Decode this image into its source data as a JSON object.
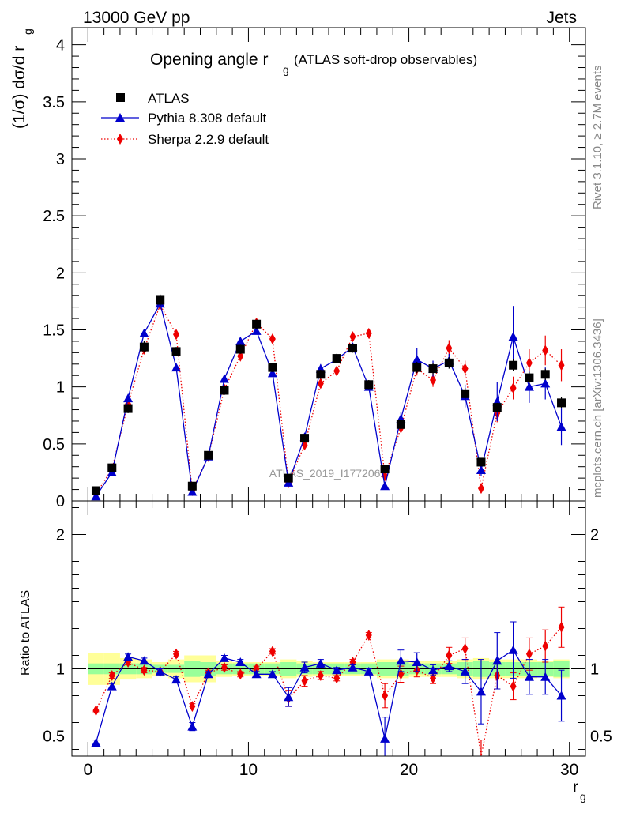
{
  "header": {
    "left_label": "13000 GeV pp",
    "right_label": "Jets"
  },
  "side_labels": {
    "rivet": "Rivet 3.1.10, ≥ 2.7M events",
    "mcplots": "mcplots.cern.ch [arXiv:1306.3436]"
  },
  "watermark": "ATLAS_2019_I1772062",
  "colors": {
    "atlas": "#000000",
    "pythia": "#0000cc",
    "sherpa": "#ee0000",
    "band_green": "#99ff99",
    "band_yellow": "#ffff99",
    "reference_line": "#007700"
  },
  "chart_data": [
    {
      "type": "scatter",
      "panel": "main",
      "title_main": "Opening angle r",
      "title_sub": "g",
      "title_suffix": "(ATLAS soft-drop observables)",
      "ylabel": "(1/σ) dσ/d r",
      "ylabel_sub": "g",
      "xlim": [
        -1,
        31
      ],
      "ylim": [
        0,
        4.15
      ],
      "yticks": [
        0,
        0.5,
        1,
        1.5,
        2,
        2.5,
        3,
        3.5,
        4
      ],
      "ytick_labels": [
        "0",
        "0.5",
        "1",
        "1.5",
        "2",
        "2.5",
        "3",
        "3.5",
        "4"
      ],
      "legend_position": "top-left",
      "x": [
        0.5,
        1.5,
        2.5,
        3.5,
        4.5,
        5.5,
        6.5,
        7.5,
        8.5,
        9.5,
        10.5,
        11.5,
        12.5,
        13.5,
        14.5,
        15.5,
        16.5,
        17.5,
        18.5,
        19.5,
        20.5,
        21.5,
        22.5,
        23.5,
        24.5,
        25.5,
        26.5,
        27.5,
        28.5,
        29.5
      ],
      "series": [
        {
          "name": "ATLAS",
          "marker": "square",
          "values": [
            0.09,
            0.29,
            0.81,
            1.35,
            1.76,
            1.31,
            0.13,
            0.4,
            0.97,
            1.33,
            1.55,
            1.17,
            0.2,
            0.55,
            1.11,
            1.25,
            1.34,
            1.02,
            0.28,
            0.67,
            1.17,
            1.16,
            1.21,
            0.94,
            0.34,
            0.82,
            1.19,
            1.08,
            1.11,
            0.86
          ],
          "errors": [
            0.01,
            0.02,
            0.04,
            0.05,
            0.05,
            0.04,
            0.02,
            0.03,
            0.04,
            0.04,
            0.04,
            0.04,
            0.02,
            0.03,
            0.04,
            0.04,
            0.04,
            0.04,
            0.03,
            0.04,
            0.05,
            0.05,
            0.05,
            0.05,
            0.03,
            0.04,
            0.05,
            0.05,
            0.05,
            0.05
          ]
        },
        {
          "name": "Pythia 8.308 default",
          "marker": "triangle",
          "line": "solid",
          "values": [
            0.04,
            0.25,
            0.9,
            1.47,
            1.73,
            1.17,
            0.08,
            0.39,
            1.07,
            1.4,
            1.49,
            1.12,
            0.16,
            0.56,
            1.16,
            1.24,
            1.35,
            1.0,
            0.13,
            0.72,
            1.24,
            1.16,
            1.23,
            0.92,
            0.27,
            0.87,
            1.44,
            1.0,
            1.03,
            0.65
          ],
          "errors": [
            0.01,
            0.01,
            0.02,
            0.02,
            0.02,
            0.02,
            0.01,
            0.02,
            0.02,
            0.02,
            0.02,
            0.02,
            0.01,
            0.02,
            0.04,
            0.03,
            0.03,
            0.03,
            0.02,
            0.06,
            0.1,
            0.07,
            0.06,
            0.1,
            0.05,
            0.17,
            0.27,
            0.14,
            0.14,
            0.16
          ]
        },
        {
          "name": "Sherpa 2.2.9 default",
          "marker": "diamond",
          "line": "dotted",
          "values": [
            0.06,
            0.28,
            0.85,
            1.33,
            1.72,
            1.46,
            0.09,
            0.39,
            0.98,
            1.27,
            1.56,
            1.42,
            0.16,
            0.49,
            1.03,
            1.14,
            1.44,
            1.47,
            0.22,
            0.64,
            1.16,
            1.06,
            1.34,
            1.16,
            0.11,
            0.77,
            0.99,
            1.21,
            1.32,
            1.19
          ],
          "errors": [
            0.01,
            0.01,
            0.02,
            0.02,
            0.02,
            0.02,
            0.01,
            0.02,
            0.02,
            0.02,
            0.02,
            0.02,
            0.01,
            0.02,
            0.03,
            0.03,
            0.03,
            0.03,
            0.02,
            0.04,
            0.06,
            0.06,
            0.07,
            0.07,
            0.02,
            0.08,
            0.1,
            0.12,
            0.13,
            0.14
          ]
        }
      ]
    },
    {
      "type": "scatter",
      "panel": "ratio",
      "ylabel": "Ratio to ATLAS",
      "xlabel": "r",
      "xlabel_sub": "g",
      "xlim": [
        -1,
        31
      ],
      "ylim": [
        0.35,
        2.25
      ],
      "xticks": [
        0,
        10,
        20,
        30
      ],
      "xtick_labels": [
        "0",
        "10",
        "20",
        "30"
      ],
      "yticks": [
        0.5,
        1,
        2
      ],
      "ytick_labels": [
        "0.5",
        "1",
        "2"
      ],
      "x": [
        0.5,
        1.5,
        2.5,
        3.5,
        4.5,
        5.5,
        6.5,
        7.5,
        8.5,
        9.5,
        10.5,
        11.5,
        12.5,
        13.5,
        14.5,
        15.5,
        16.5,
        17.5,
        18.5,
        19.5,
        20.5,
        21.5,
        22.5,
        23.5,
        24.5,
        25.5,
        26.5,
        27.5,
        28.5,
        29.5
      ],
      "band_stat": [
        0.04,
        0.04,
        0.04,
        0.04,
        0.03,
        0.03,
        0.06,
        0.05,
        0.04,
        0.04,
        0.04,
        0.04,
        0.05,
        0.04,
        0.04,
        0.04,
        0.04,
        0.04,
        0.05,
        0.05,
        0.04,
        0.04,
        0.04,
        0.05,
        0.06,
        0.05,
        0.05,
        0.05,
        0.05,
        0.06
      ],
      "band_total": [
        0.12,
        0.12,
        0.08,
        0.07,
        0.05,
        0.07,
        0.1,
        0.1,
        0.06,
        0.05,
        0.05,
        0.05,
        0.07,
        0.06,
        0.05,
        0.05,
        0.05,
        0.05,
        0.07,
        0.07,
        0.06,
        0.06,
        0.06,
        0.07,
        0.08,
        0.07,
        0.07,
        0.07,
        0.06,
        0.07
      ],
      "series": [
        {
          "name": "Pythia 8.308 default",
          "values": [
            0.45,
            0.87,
            1.09,
            1.06,
            0.98,
            0.92,
            0.57,
            0.96,
            1.08,
            1.05,
            0.96,
            0.96,
            0.79,
            1.01,
            1.04,
            0.99,
            1.01,
            0.98,
            0.48,
            1.06,
            1.05,
            0.99,
            1.02,
            0.98,
            0.83,
            1.06,
            1.14,
            0.94,
            0.94,
            0.8
          ],
          "errors": [
            0.02,
            0.02,
            0.02,
            0.02,
            0.02,
            0.02,
            0.03,
            0.02,
            0.02,
            0.02,
            0.02,
            0.02,
            0.07,
            0.04,
            0.03,
            0.02,
            0.02,
            0.02,
            0.16,
            0.08,
            0.07,
            0.04,
            0.04,
            0.09,
            0.24,
            0.21,
            0.21,
            0.13,
            0.13,
            0.19
          ]
        },
        {
          "name": "Sherpa 2.2.9 default",
          "values": [
            0.69,
            0.95,
            1.05,
            0.99,
            0.98,
            1.11,
            0.72,
            0.97,
            1.01,
            0.96,
            1.0,
            1.13,
            0.78,
            0.91,
            0.95,
            0.93,
            1.05,
            1.25,
            0.8,
            0.96,
            0.99,
            0.93,
            1.1,
            1.15,
            0.32,
            0.95,
            0.87,
            1.11,
            1.17,
            1.31
          ],
          "errors": [
            0.01,
            0.02,
            0.02,
            0.02,
            0.02,
            0.02,
            0.02,
            0.02,
            0.02,
            0.02,
            0.02,
            0.02,
            0.06,
            0.04,
            0.03,
            0.02,
            0.02,
            0.02,
            0.09,
            0.06,
            0.05,
            0.04,
            0.06,
            0.08,
            0.15,
            0.1,
            0.1,
            0.12,
            0.12,
            0.15
          ]
        }
      ]
    }
  ]
}
